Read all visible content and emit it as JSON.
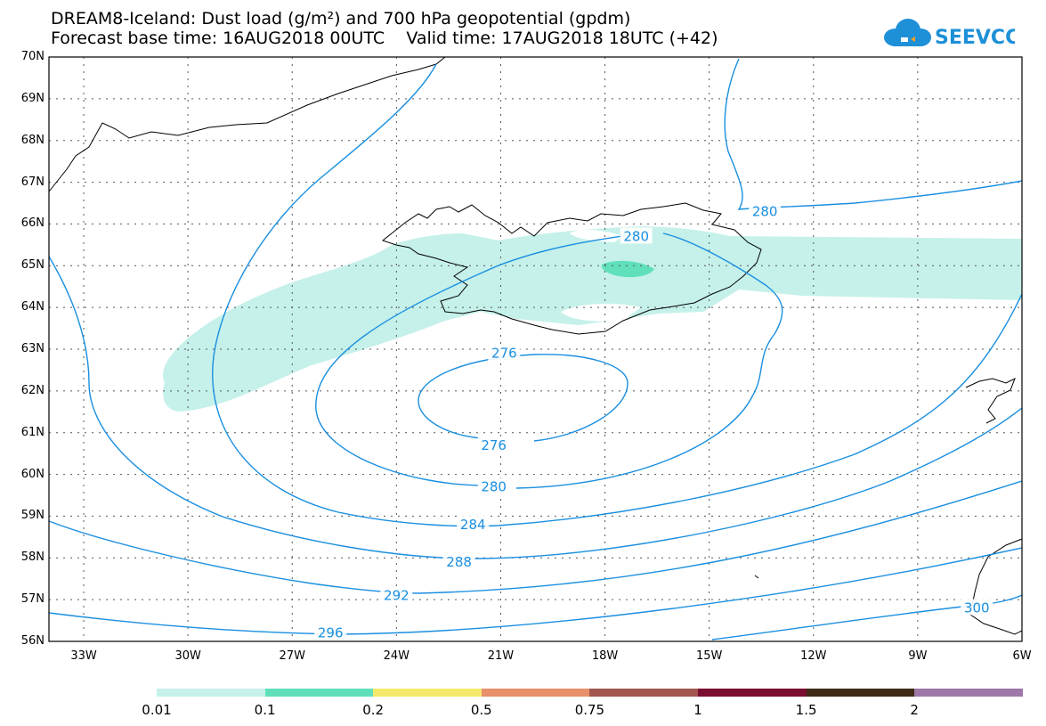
{
  "header": {
    "title_line1": "DREAM8-Iceland: Dust load (g/m²) and 700 hPa geopotential (gpdm)",
    "title_line2": "Forecast base time: 16AUG2018 00UTC    Valid time: 17AUG2018 18UTC (+42)"
  },
  "logo": {
    "text": "SEEVCCC",
    "color": "#1e90d8"
  },
  "map": {
    "lat_labels": [
      "70N",
      "69N",
      "68N",
      "67N",
      "66N",
      "65N",
      "64N",
      "63N",
      "62N",
      "61N",
      "60N",
      "59N",
      "58N",
      "57N",
      "56N"
    ],
    "lon_labels": [
      "33W",
      "30W",
      "27W",
      "24W",
      "21W",
      "18W",
      "15W",
      "12W",
      "9W",
      "6W"
    ],
    "contour_labels": [
      {
        "value": "276",
        "lon": -20.9,
        "lat": 62.9
      },
      {
        "value": "276",
        "lon": -21.2,
        "lat": 60.7
      },
      {
        "value": "280",
        "lon": -17.1,
        "lat": 65.7
      },
      {
        "value": "280",
        "lon": -13.4,
        "lat": 66.3
      },
      {
        "value": "280",
        "lon": -21.2,
        "lat": 59.7
      },
      {
        "value": "284",
        "lon": -21.8,
        "lat": 58.8
      },
      {
        "value": "288",
        "lon": -22.2,
        "lat": 57.9
      },
      {
        "value": "292",
        "lon": -24.0,
        "lat": 57.1
      },
      {
        "value": "296",
        "lon": -25.9,
        "lat": 56.2
      },
      {
        "value": "300",
        "lon": -7.3,
        "lat": 56.8
      }
    ],
    "colors": {
      "contour": "#1a8fe0",
      "dust_light": "#c5f1ea",
      "dust_mid": "#5fe0bb",
      "coast": "#000000"
    }
  },
  "colorbar": {
    "labels": [
      "0.01",
      "0.1",
      "0.2",
      "0.5",
      "0.75",
      "1",
      "1.5",
      "2"
    ],
    "colors": [
      "#c5f1ea",
      "#5fe0bb",
      "#f5e96c",
      "#e8906a",
      "#a35650",
      "#7a0e30",
      "#3f2a18",
      "#9d78a8"
    ]
  }
}
